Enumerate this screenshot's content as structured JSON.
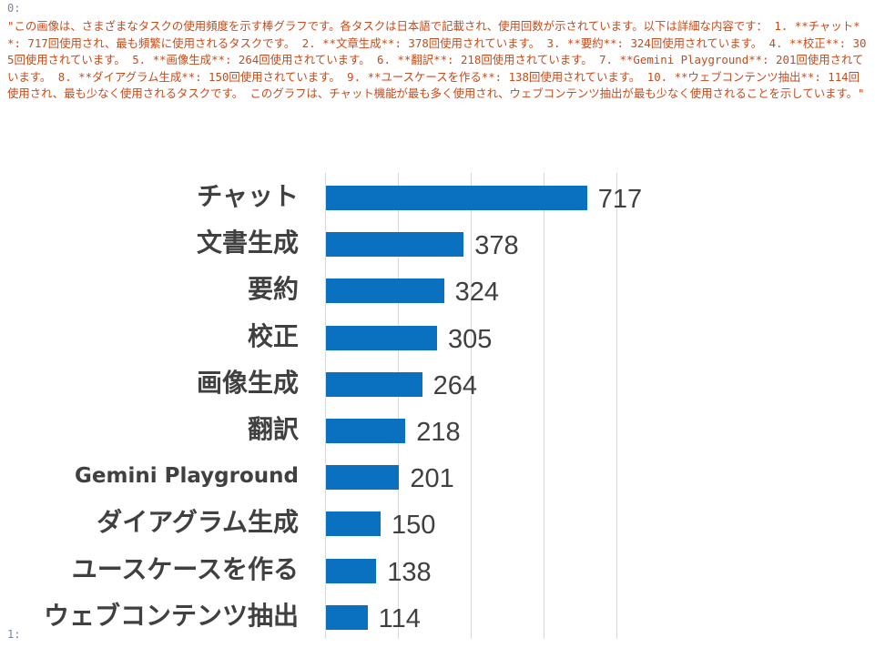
{
  "output": {
    "index_first": "0:",
    "index_second": "1:",
    "text": "\"この画像は、さまざまなタスクの使用頻度を示す棒グラフです。各タスクは日本語で記載され、使用回数が示されています。以下は詳細な内容です： 1. **チャット**: 717回使用され、最も頻繁に使用されるタスクです。 2. **文章生成**: 378回使用されています。 3. **要約**: 324回使用されています。 4. **校正**: 305回使用されています。 5. **画像生成**: 264回使用されています。 6. **翻訳**: 218回使用されています。 7. **Gemini Playground**: 201回使用されています。 8. **ダイアグラム生成**: 150回使用されています。 9. **ユースケースを作る**: 138回使用されています。 10. **ウェブコンテンツ抽出**: 114回使用され、最も少なく使用されるタスクです。 このグラフは、チャット機能が最も多く使用され、ウェブコンテンツ抽出が最も少なく使用されることを示しています。\""
  },
  "chart_data": {
    "type": "bar",
    "orientation": "horizontal",
    "categories": [
      "チャット",
      "文書生成",
      "要約",
      "校正",
      "画像生成",
      "翻訳",
      "Gemini Playground",
      "ダイアグラム生成",
      "ユースケースを作る",
      "ウェブコンテンツ抽出"
    ],
    "values": [
      717,
      378,
      324,
      305,
      264,
      218,
      201,
      150,
      138,
      114
    ],
    "value_labels": [
      "717",
      "378",
      "324",
      "305",
      "264",
      "218",
      "201",
      "150",
      "138",
      "114"
    ],
    "xlim": [
      0,
      800
    ],
    "grid": true,
    "bar_color": "#0a70c0",
    "label_color": "#404040"
  }
}
